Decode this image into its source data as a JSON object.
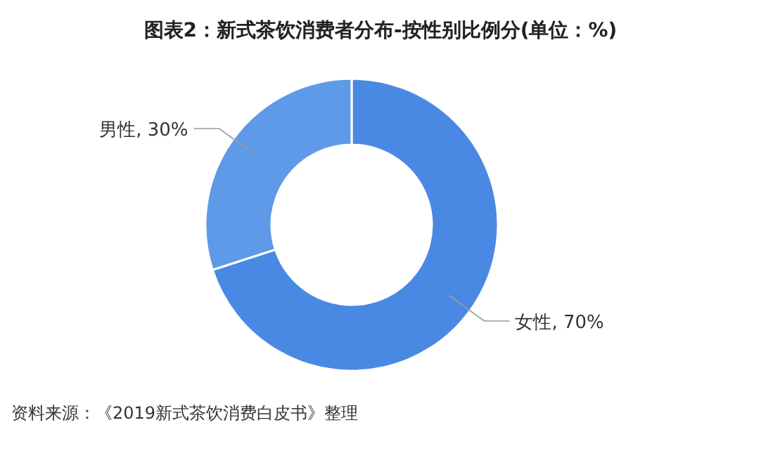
{
  "chart_data": {
    "type": "donut",
    "title": "图表2：新式茶饮消费者分布-按性别比例分(单位：%)",
    "categories": [
      "女性",
      "男性"
    ],
    "values": [
      70,
      30
    ],
    "colors": [
      "#4a89e3",
      "#5e9ae8"
    ],
    "value_labels": [
      "70%",
      "30%"
    ],
    "annotations": [
      "资料来源：《2019新式茶饮消费白皮书》整理"
    ]
  }
}
